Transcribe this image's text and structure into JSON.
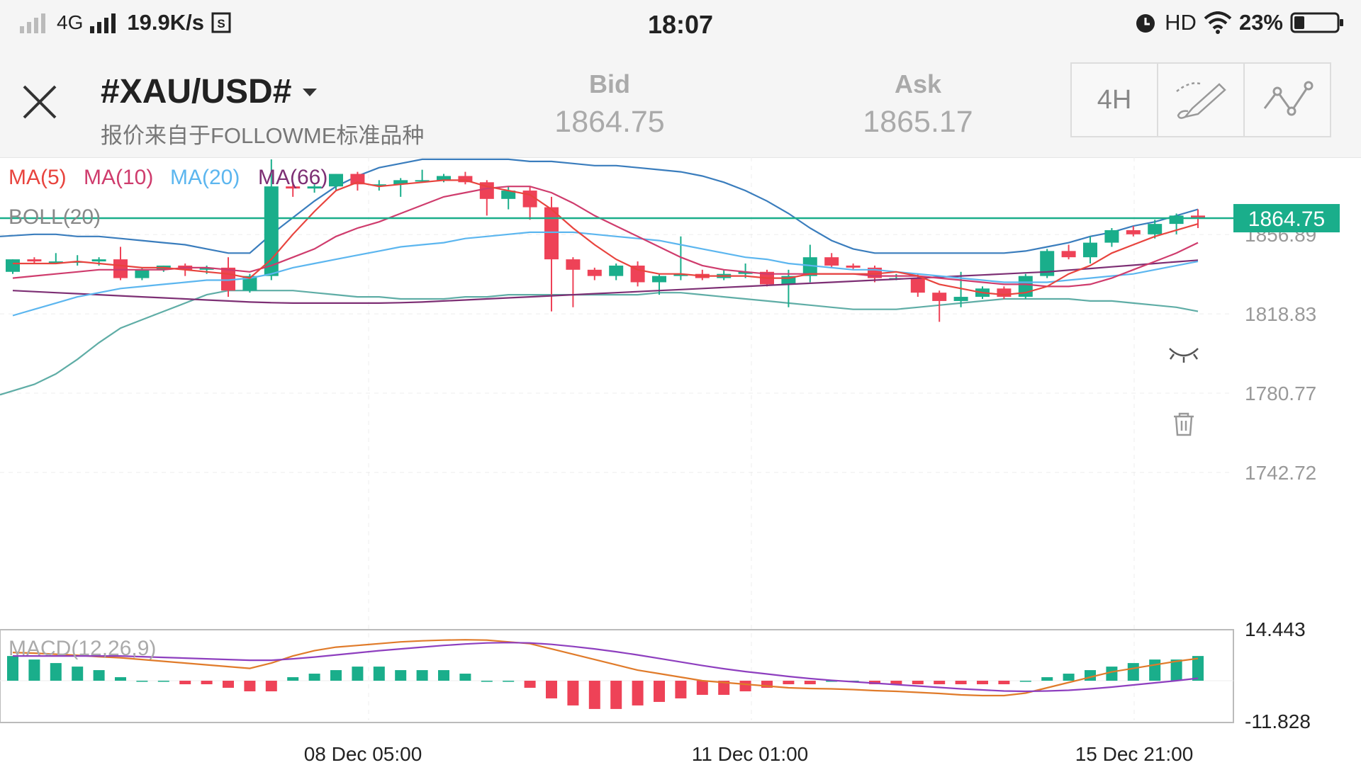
{
  "status_bar": {
    "network": "4G",
    "speed": "19.9K/s",
    "time": "18:07",
    "hd": "HD",
    "battery": "23%"
  },
  "header": {
    "symbol": "#XAU/USD#",
    "subtitle": "报价来自于FOLLOWME标准品种",
    "bid_label": "Bid",
    "bid_value": "1864.75",
    "ask_label": "Ask",
    "ask_value": "1865.17",
    "timeframe_label": "4H",
    "icons": [
      "close-icon",
      "chevron-down-icon",
      "draw-brush-icon",
      "indicator-line-icon"
    ]
  },
  "colors": {
    "up": "#1aae8b",
    "down": "#ee4257",
    "ma5": "#e8443e",
    "ma10": "#cf3c6d",
    "ma20": "#5cb6ef",
    "ma66": "#7d2f74",
    "boll_upper": "#3a7dbd",
    "boll_lower": "#5fada6",
    "price_line": "#1aae8b",
    "macd_dif": "#e07b2a",
    "macd_dea": "#8e3fbf"
  },
  "chart_data": {
    "type": "candlestick",
    "legend": [
      "MA(5)",
      "MA(10)",
      "MA(20)",
      "MA(66)"
    ],
    "indicator_label": "BOLL(20)",
    "current_price": "1864.75",
    "y_ticks": [
      "1856.89",
      "1818.83",
      "1780.77",
      "1742.72"
    ],
    "ylim": [
      1724,
      1894
    ],
    "x_labels": [
      "08 Dec 05:00",
      "11 Dec 01:00",
      "15 Dec 21:00"
    ],
    "candles": [
      [
        1839,
        1845,
        1838,
        1845
      ],
      [
        1845,
        1846,
        1843,
        1844
      ],
      [
        1844,
        1848,
        1843,
        1844
      ],
      [
        1844,
        1847,
        1842,
        1844
      ],
      [
        1844,
        1846,
        1842,
        1845
      ],
      [
        1845,
        1851,
        1835,
        1836
      ],
      [
        1836,
        1841,
        1835,
        1840
      ],
      [
        1840,
        1842,
        1839,
        1842
      ],
      [
        1842,
        1843,
        1837,
        1840
      ],
      [
        1840,
        1842,
        1838,
        1841
      ],
      [
        1841,
        1846,
        1827,
        1830
      ],
      [
        1830,
        1838,
        1829,
        1837
      ],
      [
        1837,
        1893,
        1835,
        1880
      ],
      [
        1880,
        1882,
        1875,
        1879
      ],
      [
        1879,
        1881,
        1877,
        1880
      ],
      [
        1880,
        1886,
        1878,
        1886
      ],
      [
        1886,
        1887,
        1878,
        1881
      ],
      [
        1881,
        1883,
        1878,
        1881
      ],
      [
        1881,
        1884,
        1875,
        1883
      ],
      [
        1883,
        1888,
        1882,
        1883
      ],
      [
        1883,
        1886,
        1882,
        1885
      ],
      [
        1885,
        1887,
        1881,
        1882
      ],
      [
        1882,
        1883,
        1866,
        1874
      ],
      [
        1874,
        1880,
        1869,
        1878
      ],
      [
        1878,
        1880,
        1864,
        1870
      ],
      [
        1870,
        1875,
        1820,
        1845
      ],
      [
        1845,
        1846,
        1822,
        1840
      ],
      [
        1840,
        1841,
        1835,
        1837
      ],
      [
        1837,
        1843,
        1835,
        1842
      ],
      [
        1842,
        1844,
        1832,
        1834
      ],
      [
        1834,
        1838,
        1828,
        1837
      ],
      [
        1837,
        1856,
        1835,
        1838
      ],
      [
        1838,
        1840,
        1835,
        1836
      ],
      [
        1836,
        1840,
        1835,
        1838
      ],
      [
        1838,
        1843,
        1836,
        1839
      ],
      [
        1839,
        1840,
        1832,
        1833
      ],
      [
        1833,
        1840,
        1822,
        1837
      ],
      [
        1837,
        1852,
        1834,
        1846
      ],
      [
        1846,
        1848,
        1841,
        1842
      ],
      [
        1842,
        1843,
        1840,
        1841
      ],
      [
        1841,
        1842,
        1834,
        1836
      ],
      [
        1836,
        1838,
        1835,
        1836
      ],
      [
        1836,
        1838,
        1827,
        1829
      ],
      [
        1829,
        1830,
        1815,
        1825
      ],
      [
        1825,
        1839,
        1822,
        1827
      ],
      [
        1827,
        1832,
        1826,
        1831
      ],
      [
        1831,
        1832,
        1826,
        1827
      ],
      [
        1827,
        1838,
        1826,
        1837
      ],
      [
        1837,
        1850,
        1836,
        1849
      ],
      [
        1849,
        1852,
        1845,
        1846
      ],
      [
        1846,
        1856,
        1843,
        1853
      ],
      [
        1853,
        1860,
        1851,
        1859
      ],
      [
        1859,
        1861,
        1856,
        1857
      ],
      [
        1857,
        1864,
        1855,
        1862
      ],
      [
        1862,
        1867,
        1857,
        1866
      ],
      [
        1866,
        1869,
        1860,
        1864.75
      ]
    ],
    "ma5": [
      1843,
      1843,
      1843,
      1844,
      1843,
      1842,
      1841,
      1841,
      1840,
      1839,
      1838,
      1836,
      1845,
      1857,
      1868,
      1878,
      1882,
      1880,
      1881,
      1882,
      1883,
      1883,
      1880,
      1878,
      1876,
      1869,
      1860,
      1852,
      1845,
      1840,
      1838,
      1838,
      1837,
      1837,
      1837,
      1836,
      1836,
      1838,
      1838,
      1838,
      1838,
      1839,
      1837,
      1833,
      1831,
      1829,
      1828,
      1829,
      1832,
      1838,
      1842,
      1848,
      1852,
      1856,
      1859,
      1862
    ],
    "ma10": [
      1836,
      1837,
      1838,
      1839,
      1840,
      1840,
      1840,
      1840,
      1841,
      1841,
      1840,
      1839,
      1842,
      1846,
      1850,
      1856,
      1860,
      1863,
      1867,
      1871,
      1875,
      1877,
      1879,
      1880,
      1880,
      1877,
      1872,
      1866,
      1861,
      1856,
      1851,
      1846,
      1842,
      1840,
      1839,
      1838,
      1838,
      1838,
      1838,
      1838,
      1837,
      1837,
      1837,
      1836,
      1835,
      1834,
      1833,
      1833,
      1832,
      1832,
      1833,
      1836,
      1840,
      1844,
      1848,
      1853
    ],
    "ma20": [
      1818,
      1821,
      1824,
      1827,
      1829,
      1831,
      1832,
      1833,
      1834,
      1835,
      1835,
      1836,
      1838,
      1841,
      1843,
      1845,
      1847,
      1849,
      1851,
      1852,
      1853,
      1855,
      1856,
      1857,
      1858,
      1858,
      1858,
      1857,
      1856,
      1855,
      1854,
      1852,
      1850,
      1848,
      1846,
      1845,
      1843,
      1842,
      1841,
      1840,
      1840,
      1839,
      1838,
      1837,
      1836,
      1835,
      1834,
      1834,
      1834,
      1835,
      1836,
      1837,
      1838,
      1840,
      1842,
      1844
    ],
    "ma66": [
      1830,
      1829.5,
      1829,
      1828.5,
      1828,
      1827.5,
      1827,
      1826.5,
      1826,
      1825.5,
      1825,
      1824.5,
      1824.2,
      1824,
      1824,
      1824,
      1824,
      1824,
      1824.2,
      1824.5,
      1825,
      1825.5,
      1826,
      1826.5,
      1827,
      1827.5,
      1828,
      1828.5,
      1829,
      1829.5,
      1830,
      1830.5,
      1831,
      1831.5,
      1832,
      1832.5,
      1833,
      1833.5,
      1834,
      1834.5,
      1835,
      1835.5,
      1836,
      1836.5,
      1837,
      1837.5,
      1838,
      1838.5,
      1839,
      1839.8,
      1840.6,
      1841.4,
      1842.2,
      1843,
      1843.8,
      1844.6
    ],
    "boll_upper": [
      1856,
      1857,
      1857,
      1856,
      1856,
      1855,
      1854,
      1853,
      1852,
      1850,
      1848,
      1848,
      1857,
      1865,
      1873,
      1880,
      1885,
      1889,
      1891,
      1893,
      1893,
      1893,
      1893,
      1893,
      1892,
      1892,
      1891,
      1890,
      1890,
      1889,
      1888,
      1887,
      1885,
      1882,
      1878,
      1873,
      1867,
      1860,
      1854,
      1850,
      1848,
      1848,
      1848,
      1848,
      1848,
      1848,
      1848,
      1849,
      1851,
      1853,
      1856,
      1858,
      1861,
      1863,
      1866,
      1869
    ],
    "boll_lower": [
      1780,
      1785,
      1790,
      1797,
      1805,
      1812,
      1816,
      1820,
      1824,
      1828,
      1830,
      1830,
      1830,
      1830,
      1829,
      1828,
      1827,
      1827,
      1826,
      1826,
      1826,
      1827,
      1827,
      1828,
      1828,
      1828,
      1828,
      1828,
      1828,
      1828,
      1829,
      1829,
      1828,
      1827,
      1826,
      1825,
      1824,
      1823,
      1822,
      1821,
      1821,
      1821,
      1822,
      1823,
      1824,
      1825,
      1826,
      1826,
      1826,
      1826,
      1825,
      1825,
      1824,
      1823,
      1822,
      1820
    ]
  },
  "macd": {
    "label": "MACD(12,26,9)",
    "max_tick": "14.443",
    "min_tick": "-11.828",
    "range": [
      -11.828,
      14.443
    ],
    "hist": [
      7,
      6,
      5,
      4,
      3,
      1,
      0,
      0,
      -1,
      -1,
      -2,
      -3,
      -3,
      1,
      2,
      3,
      4,
      4,
      3,
      3,
      3,
      2,
      0,
      0,
      -2,
      -5,
      -7,
      -8,
      -8,
      -7,
      -6,
      -5,
      -4,
      -4,
      -3,
      -2,
      -1,
      -1,
      0,
      0,
      -1,
      -1,
      -1,
      -1,
      -1,
      -1,
      -1,
      0,
      1,
      2,
      3,
      4,
      5,
      6,
      6,
      7
    ],
    "dif": [
      8,
      7.8,
      7.5,
      7.2,
      6.8,
      6.5,
      6,
      5.5,
      5,
      4.5,
      4,
      3.5,
      5,
      7,
      8.5,
      9.5,
      10,
      10.5,
      11,
      11.3,
      11.5,
      11.6,
      11.5,
      11,
      10.5,
      9,
      7.5,
      6,
      4.5,
      3,
      2,
      1,
      0,
      -0.5,
      -1,
      -1.5,
      -2,
      -2.2,
      -2.3,
      -2.5,
      -2.8,
      -3,
      -3.3,
      -3.6,
      -4,
      -4.2,
      -4.2,
      -3.5,
      -2,
      -0.5,
      1,
      2.5,
      3.5,
      4.5,
      5.5,
      6.3
    ],
    "dea": [
      7,
      7,
      7,
      7,
      7,
      7,
      6.8,
      6.6,
      6.4,
      6.2,
      6,
      5.8,
      5.8,
      6.2,
      6.7,
      7.3,
      7.9,
      8.5,
      9,
      9.5,
      10,
      10.4,
      10.7,
      10.8,
      10.7,
      10.3,
      9.7,
      9,
      8.2,
      7.3,
      6.3,
      5.3,
      4.3,
      3.4,
      2.6,
      1.9,
      1.2,
      0.6,
      0.1,
      -0.3,
      -0.7,
      -1.1,
      -1.5,
      -1.9,
      -2.3,
      -2.6,
      -2.9,
      -3,
      -2.9,
      -2.7,
      -2.3,
      -1.8,
      -1.2,
      -0.6,
      0,
      0.7
    ]
  }
}
